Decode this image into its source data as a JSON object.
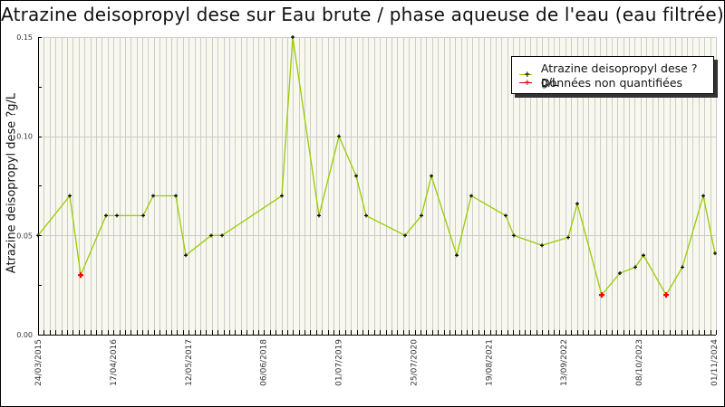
{
  "chart_data": {
    "type": "line",
    "title": "Atrazine deisopropyl dese sur Eau brute / phase aqueuse de l'eau (eau filtrée)",
    "xlabel": "",
    "ylabel": "Atrazine deisopropyl dese ?g/L",
    "ylim": [
      0,
      0.15
    ],
    "y_ticks": [
      "0.00",
      "0.05",
      "0.10",
      "0.15"
    ],
    "x_ticks": [
      "24/03/2015",
      "17/04/2016",
      "12/05/2017",
      "06/06/2018",
      "01/07/2019",
      "25/07/2020",
      "19/08/2021",
      "13/09/2022",
      "08/10/2023",
      "01/11/2024"
    ],
    "grid": true,
    "legend_position": "top-right",
    "legend": [
      {
        "label": "Atrazine deisopropyl dese ?g/L",
        "color": "#99cc00",
        "marker_color": "#000000"
      },
      {
        "label": "Données non quantifiées",
        "color": "#cc0000",
        "marker_color": "#ff0000"
      }
    ],
    "series": [
      {
        "name": "Atrazine deisopropyl dese ?g/L",
        "points": [
          {
            "px": 42,
            "y": 0.05,
            "nq": false
          },
          {
            "px": 77,
            "y": 0.07,
            "nq": false
          },
          {
            "px": 89,
            "y": 0.03,
            "nq": true
          },
          {
            "px": 117,
            "y": 0.06,
            "nq": false
          },
          {
            "px": 129,
            "y": 0.06,
            "nq": false
          },
          {
            "px": 158,
            "y": 0.06,
            "nq": false
          },
          {
            "px": 169,
            "y": 0.07,
            "nq": false
          },
          {
            "px": 194,
            "y": 0.07,
            "nq": false
          },
          {
            "px": 205,
            "y": 0.04,
            "nq": false
          },
          {
            "px": 233,
            "y": 0.05,
            "nq": false
          },
          {
            "px": 245,
            "y": 0.05,
            "nq": false
          },
          {
            "px": 311,
            "y": 0.07,
            "nq": false
          },
          {
            "px": 323,
            "y": 0.15,
            "nq": false
          },
          {
            "px": 352,
            "y": 0.06,
            "nq": false
          },
          {
            "px": 374,
            "y": 0.1,
            "nq": false
          },
          {
            "px": 393,
            "y": 0.08,
            "nq": false
          },
          {
            "px": 404,
            "y": 0.06,
            "nq": false
          },
          {
            "px": 447,
            "y": 0.05,
            "nq": false
          },
          {
            "px": 465,
            "y": 0.06,
            "nq": false
          },
          {
            "px": 476,
            "y": 0.08,
            "nq": false
          },
          {
            "px": 504,
            "y": 0.04,
            "nq": false
          },
          {
            "px": 520,
            "y": 0.07,
            "nq": false
          },
          {
            "px": 558,
            "y": 0.06,
            "nq": false
          },
          {
            "px": 567,
            "y": 0.05,
            "nq": false
          },
          {
            "px": 598,
            "y": 0.045,
            "nq": false
          },
          {
            "px": 627,
            "y": 0.049,
            "nq": false
          },
          {
            "px": 637,
            "y": 0.066,
            "nq": false
          },
          {
            "px": 664,
            "y": 0.02,
            "nq": true
          },
          {
            "px": 684,
            "y": 0.031,
            "nq": false
          },
          {
            "px": 701,
            "y": 0.034,
            "nq": false
          },
          {
            "px": 710,
            "y": 0.04,
            "nq": false
          },
          {
            "px": 735,
            "y": 0.02,
            "nq": true
          },
          {
            "px": 753,
            "y": 0.034,
            "nq": false
          },
          {
            "px": 776,
            "y": 0.07,
            "nq": false
          },
          {
            "px": 789,
            "y": 0.041,
            "nq": false
          }
        ]
      }
    ]
  },
  "colors": {
    "plot_bg": "#f8f8ee",
    "grid": "#cccccc",
    "line": "#99cc00",
    "marker": "#000000",
    "nq_marker": "#ff0000"
  }
}
